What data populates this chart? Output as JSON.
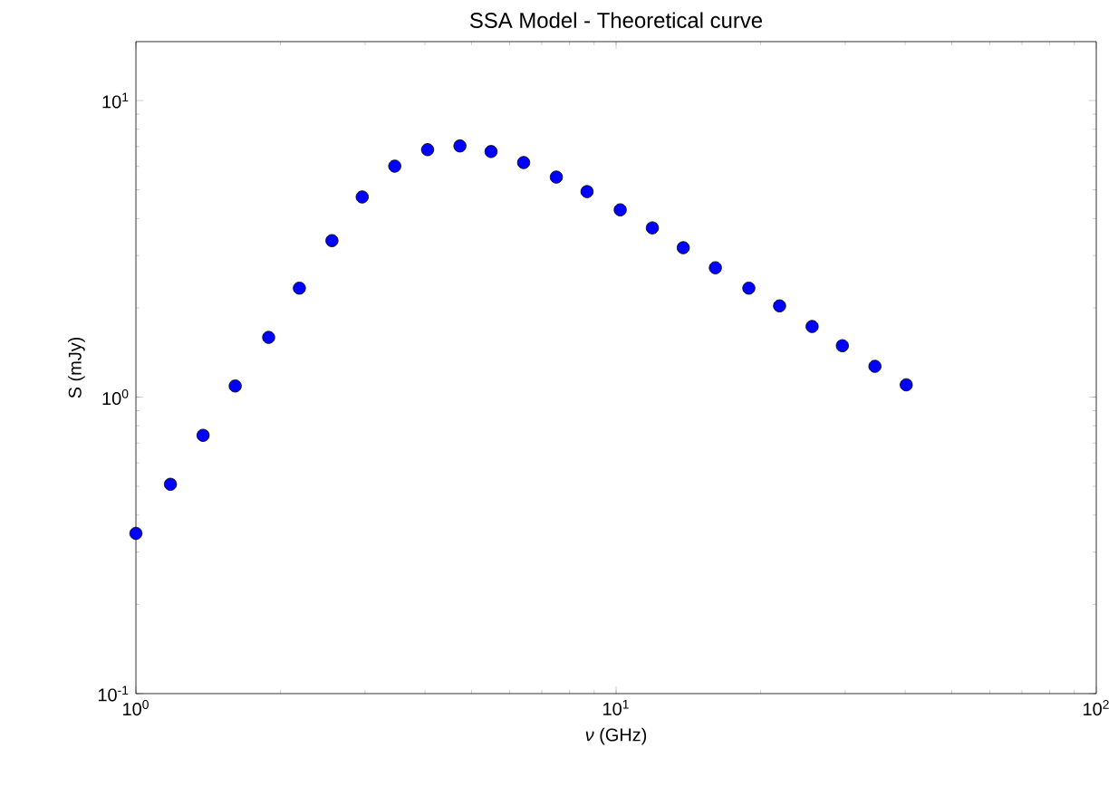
{
  "chart_data": {
    "type": "scatter",
    "title": "SSA Model - Theoretical curve",
    "xlabel": "*ν* (GHz)",
    "ylabel": "S (mJy)",
    "log": "xy",
    "xlim": [
      1,
      100
    ],
    "ylim": [
      0.1,
      15.8
    ],
    "xticks": [
      {
        "value": 1,
        "label": "10$^{0}$"
      },
      {
        "value": 10,
        "label": "10$^{1}$"
      },
      {
        "value": 100,
        "label": "10$^{2}$"
      }
    ],
    "yticks": [
      {
        "value": 0.1,
        "label": "10$^{-1}$"
      },
      {
        "value": 1,
        "label": "10$^{0}$"
      },
      {
        "value": 10,
        "label": "10$^{1}$"
      }
    ],
    "series": [
      {
        "color": "#0000ff",
        "x": [
          1,
          1.18,
          1.38,
          1.61,
          1.89,
          2.19,
          2.56,
          2.96,
          3.46,
          4.05,
          4.73,
          5.49,
          6.42,
          7.51,
          8.7,
          10.2,
          11.9,
          13.8,
          16.1,
          18.9,
          21.9,
          25.6,
          29.6,
          34.6,
          40.2
        ],
        "values": [
          0.347,
          0.508,
          0.743,
          1.09,
          1.59,
          2.33,
          3.37,
          4.73,
          6.01,
          6.83,
          7.03,
          6.73,
          6.18,
          5.52,
          4.93,
          4.28,
          3.72,
          3.19,
          2.73,
          2.33,
          2.03,
          1.73,
          1.49,
          1.27,
          1.1
        ]
      }
    ]
  }
}
